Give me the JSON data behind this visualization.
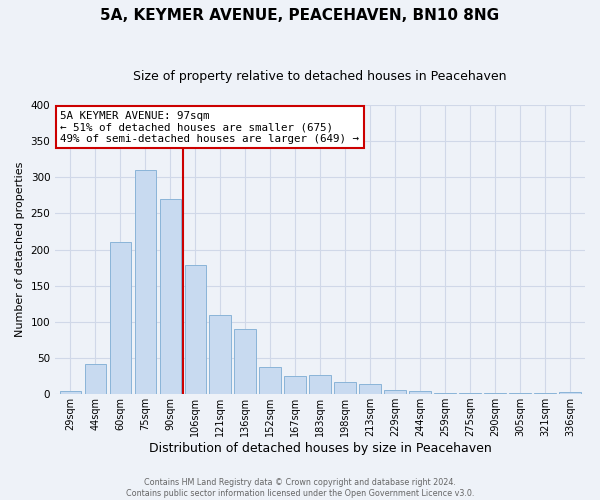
{
  "title": "5A, KEYMER AVENUE, PEACEHAVEN, BN10 8NG",
  "subtitle": "Size of property relative to detached houses in Peacehaven",
  "xlabel": "Distribution of detached houses by size in Peacehaven",
  "ylabel": "Number of detached properties",
  "categories": [
    "29sqm",
    "44sqm",
    "60sqm",
    "75sqm",
    "90sqm",
    "106sqm",
    "121sqm",
    "136sqm",
    "152sqm",
    "167sqm",
    "183sqm",
    "198sqm",
    "213sqm",
    "229sqm",
    "244sqm",
    "259sqm",
    "275sqm",
    "290sqm",
    "305sqm",
    "321sqm",
    "336sqm"
  ],
  "values": [
    5,
    42,
    210,
    310,
    270,
    178,
    110,
    90,
    38,
    25,
    26,
    17,
    14,
    6,
    5,
    2,
    2,
    1,
    1,
    1,
    3
  ],
  "bar_color": "#c8daf0",
  "bar_edge_color": "#8ab4d8",
  "vline_color": "#cc0000",
  "annotation_title": "5A KEYMER AVENUE: 97sqm",
  "annotation_line1": "← 51% of detached houses are smaller (675)",
  "annotation_line2": "49% of semi-detached houses are larger (649) →",
  "annotation_box_color": "#ffffff",
  "annotation_box_edge": "#cc0000",
  "footer1": "Contains HM Land Registry data © Crown copyright and database right 2024.",
  "footer2": "Contains public sector information licensed under the Open Government Licence v3.0.",
  "ylim": [
    0,
    400
  ],
  "yticks": [
    0,
    50,
    100,
    150,
    200,
    250,
    300,
    350,
    400
  ],
  "background_color": "#eef2f8",
  "grid_color": "#d0d8e8",
  "title_fontsize": 11,
  "subtitle_fontsize": 9,
  "xlabel_fontsize": 9,
  "ylabel_fontsize": 8
}
